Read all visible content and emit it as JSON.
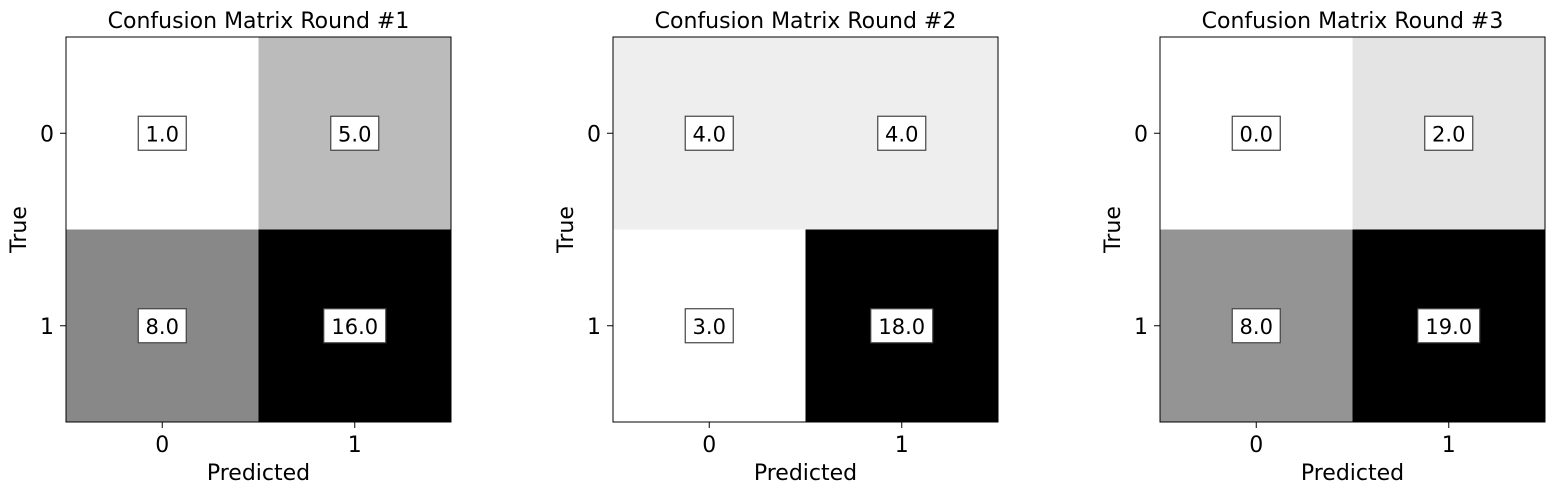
{
  "chart_data": [
    {
      "type": "heatmap",
      "title": "Confusion Matrix Round #1",
      "xlabel": "Predicted",
      "ylabel": "True",
      "x_categories": [
        "0",
        "1"
      ],
      "y_categories": [
        "0",
        "1"
      ],
      "values": [
        [
          1.0,
          5.0
        ],
        [
          8.0,
          16.0
        ]
      ],
      "value_labels": [
        [
          "1.0",
          "5.0"
        ],
        [
          "8.0",
          "16.0"
        ]
      ],
      "colormap": "Greys",
      "colorbar": false,
      "grid": false
    },
    {
      "type": "heatmap",
      "title": "Confusion Matrix Round #2",
      "xlabel": "Predicted",
      "ylabel": "True",
      "x_categories": [
        "0",
        "1"
      ],
      "y_categories": [
        "0",
        "1"
      ],
      "values": [
        [
          4.0,
          4.0
        ],
        [
          3.0,
          18.0
        ]
      ],
      "value_labels": [
        [
          "4.0",
          "4.0"
        ],
        [
          "3.0",
          "18.0"
        ]
      ],
      "colormap": "Greys",
      "colorbar": false,
      "grid": false
    },
    {
      "type": "heatmap",
      "title": "Confusion Matrix Round #3",
      "xlabel": "Predicted",
      "ylabel": "True",
      "x_categories": [
        "0",
        "1"
      ],
      "y_categories": [
        "0",
        "1"
      ],
      "values": [
        [
          0.0,
          2.0
        ],
        [
          8.0,
          19.0
        ]
      ],
      "value_labels": [
        [
          "0.0",
          "2.0"
        ],
        [
          "8.0",
          "19.0"
        ]
      ],
      "colormap": "Greys",
      "colorbar": false,
      "grid": false
    }
  ]
}
